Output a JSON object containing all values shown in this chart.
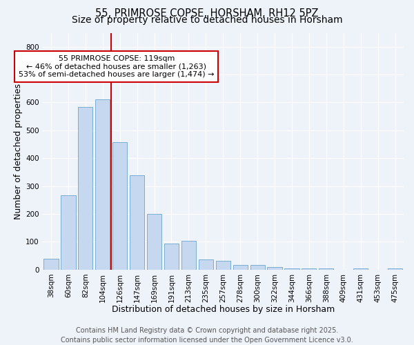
{
  "title1": "55, PRIMROSE COPSE, HORSHAM, RH12 5PZ",
  "title2": "Size of property relative to detached houses in Horsham",
  "xlabel": "Distribution of detached houses by size in Horsham",
  "ylabel": "Number of detached properties",
  "categories": [
    "38sqm",
    "60sqm",
    "82sqm",
    "104sqm",
    "126sqm",
    "147sqm",
    "169sqm",
    "191sqm",
    "213sqm",
    "235sqm",
    "257sqm",
    "278sqm",
    "300sqm",
    "322sqm",
    "344sqm",
    "366sqm",
    "388sqm",
    "409sqm",
    "431sqm",
    "453sqm",
    "475sqm"
  ],
  "values": [
    38,
    268,
    585,
    610,
    458,
    340,
    200,
    93,
    103,
    37,
    32,
    18,
    17,
    10,
    4,
    4,
    4,
    0,
    4,
    0,
    5
  ],
  "bar_color": "#c5d8ef",
  "bar_edge_color": "#7aadd4",
  "bar_width": 0.85,
  "red_line_x": 3.5,
  "red_line_color": "#cc0000",
  "annotation_text": "  55 PRIMROSE COPSE: 119sqm  \n← 46% of detached houses are smaller (1,263)\n53% of semi-detached houses are larger (1,474) →",
  "annotation_box_color": "#ffffff",
  "annotation_box_edge_color": "#cc0000",
  "ylim": [
    0,
    850
  ],
  "yticks": [
    0,
    100,
    200,
    300,
    400,
    500,
    600,
    700,
    800
  ],
  "bg_color": "#eef3fa",
  "grid_color": "#ffffff",
  "footer_text": "Contains HM Land Registry data © Crown copyright and database right 2025.\nContains public sector information licensed under the Open Government Licence v3.0.",
  "title_fontsize": 10.5,
  "subtitle_fontsize": 10,
  "axis_label_fontsize": 9,
  "tick_fontsize": 7.5,
  "annotation_fontsize": 8,
  "footer_fontsize": 7
}
